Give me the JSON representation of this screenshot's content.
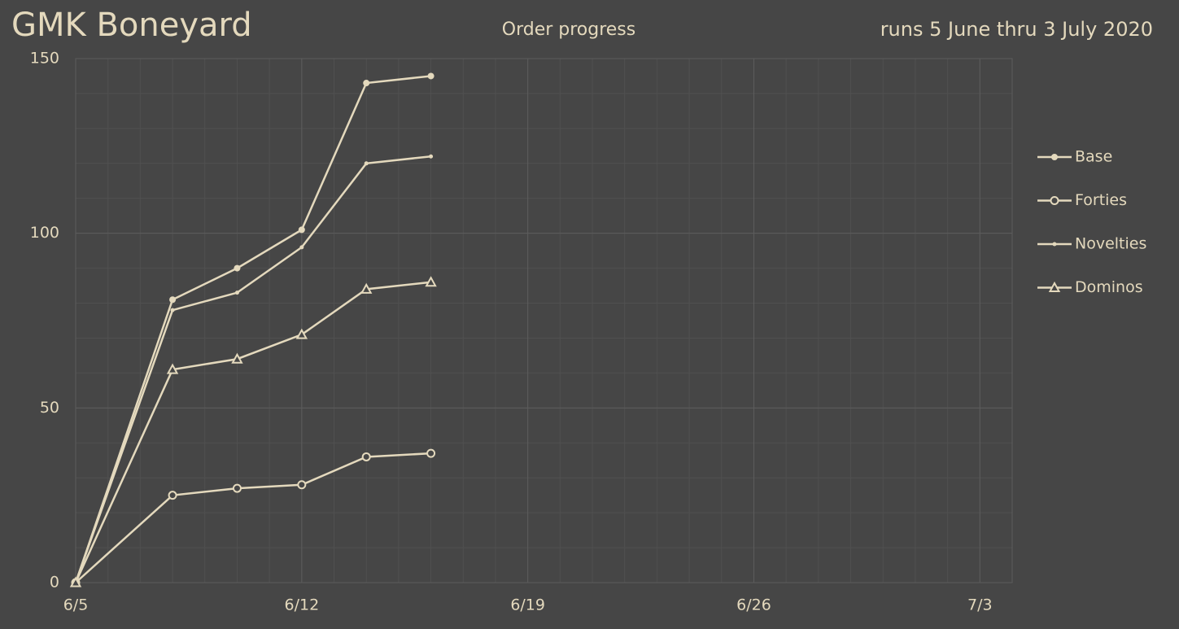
{
  "chart_data": {
    "type": "line",
    "title": "GMK Boneyard",
    "subtitle": "Order progress",
    "annotation": "runs 5 June thru 3 July 2020",
    "x": [
      "6/5",
      "6/8",
      "6/10",
      "6/12",
      "6/14",
      "6/16"
    ],
    "series": [
      {
        "name": "Base",
        "color": "#e4d9bd",
        "marker": "filled-circle",
        "values": [
          0,
          81,
          90,
          101,
          143,
          145
        ]
      },
      {
        "name": "Forties",
        "color": "#e4d9bd",
        "marker": "open-circle",
        "values": [
          0,
          25,
          27,
          28,
          36,
          37
        ]
      },
      {
        "name": "Novelties",
        "color": "#e4d9bd",
        "marker": "dot",
        "values": [
          0,
          78,
          83,
          96,
          120,
          122
        ]
      },
      {
        "name": "Dominos",
        "color": "#e4d9bd",
        "marker": "open-triangle",
        "values": [
          0,
          61,
          64,
          71,
          84,
          86
        ]
      }
    ],
    "xlim": [
      "6/5",
      "7/4"
    ],
    "xticks": [
      "6/5",
      "6/12",
      "6/19",
      "6/26",
      "7/3"
    ],
    "ylim": [
      0,
      150
    ],
    "yticks": [
      0,
      50,
      100,
      150
    ],
    "grid": true,
    "legend": "right"
  }
}
